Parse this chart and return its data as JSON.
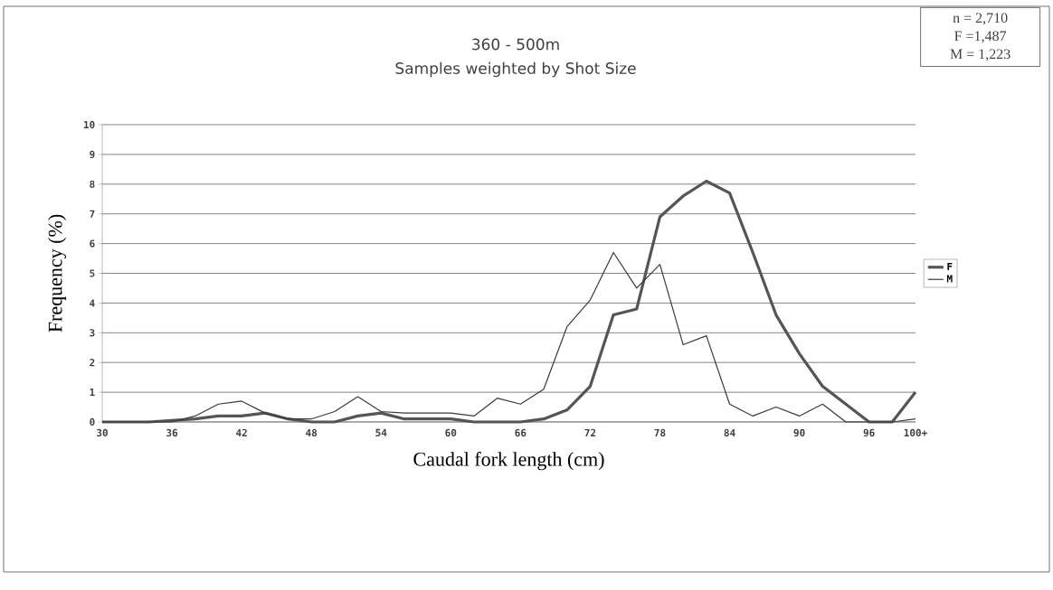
{
  "chart_data": {
    "type": "line",
    "title": "360 - 500m",
    "subtitle": "Samples weighted by Shot Size",
    "xlabel": "Caudal fork length (cm)",
    "ylabel": "Frequency (%)",
    "categories": [
      "30",
      null,
      null,
      "36",
      null,
      null,
      "42",
      null,
      null,
      "48",
      null,
      null,
      "54",
      null,
      null,
      "60",
      null,
      null,
      "66",
      null,
      null,
      "72",
      null,
      null,
      "78",
      null,
      null,
      "84",
      null,
      null,
      "90",
      null,
      null,
      "96",
      null,
      "100+"
    ],
    "series": [
      {
        "name": "F",
        "color": "#555555",
        "values": [
          0,
          0,
          0,
          0.05,
          0.1,
          0.2,
          0.2,
          0.3,
          0.1,
          0,
          0,
          0.2,
          0.3,
          0.1,
          0.1,
          0.1,
          0,
          0,
          0,
          0.1,
          0.4,
          1.2,
          3.6,
          3.8,
          6.9,
          7.6,
          8.1,
          7.7,
          5.7,
          3.6,
          2.3,
          1.2,
          0.6,
          0,
          0,
          1.0
        ]
      },
      {
        "name": "M",
        "color": "#3a3a3a",
        "values": [
          0,
          0,
          0,
          0,
          0.2,
          0.6,
          0.7,
          0.3,
          0.1,
          0.1,
          0.35,
          0.85,
          0.35,
          0.3,
          0.3,
          0.3,
          0.2,
          0.8,
          0.6,
          1.1,
          3.2,
          4.1,
          5.7,
          4.5,
          5.3,
          2.6,
          2.9,
          0.6,
          0.2,
          0.5,
          0.2,
          0.6,
          0,
          0,
          0,
          0.1
        ]
      }
    ],
    "ylim": [
      0,
      10
    ],
    "yticks": [
      0,
      1,
      2,
      3,
      4,
      5,
      6,
      7,
      8,
      9,
      10
    ],
    "grid": "y",
    "legend": "right",
    "marker": "none",
    "line_style": "solid",
    "annotations": [
      "n = 2,710",
      "F =1,487",
      "M = 1,223"
    ]
  }
}
